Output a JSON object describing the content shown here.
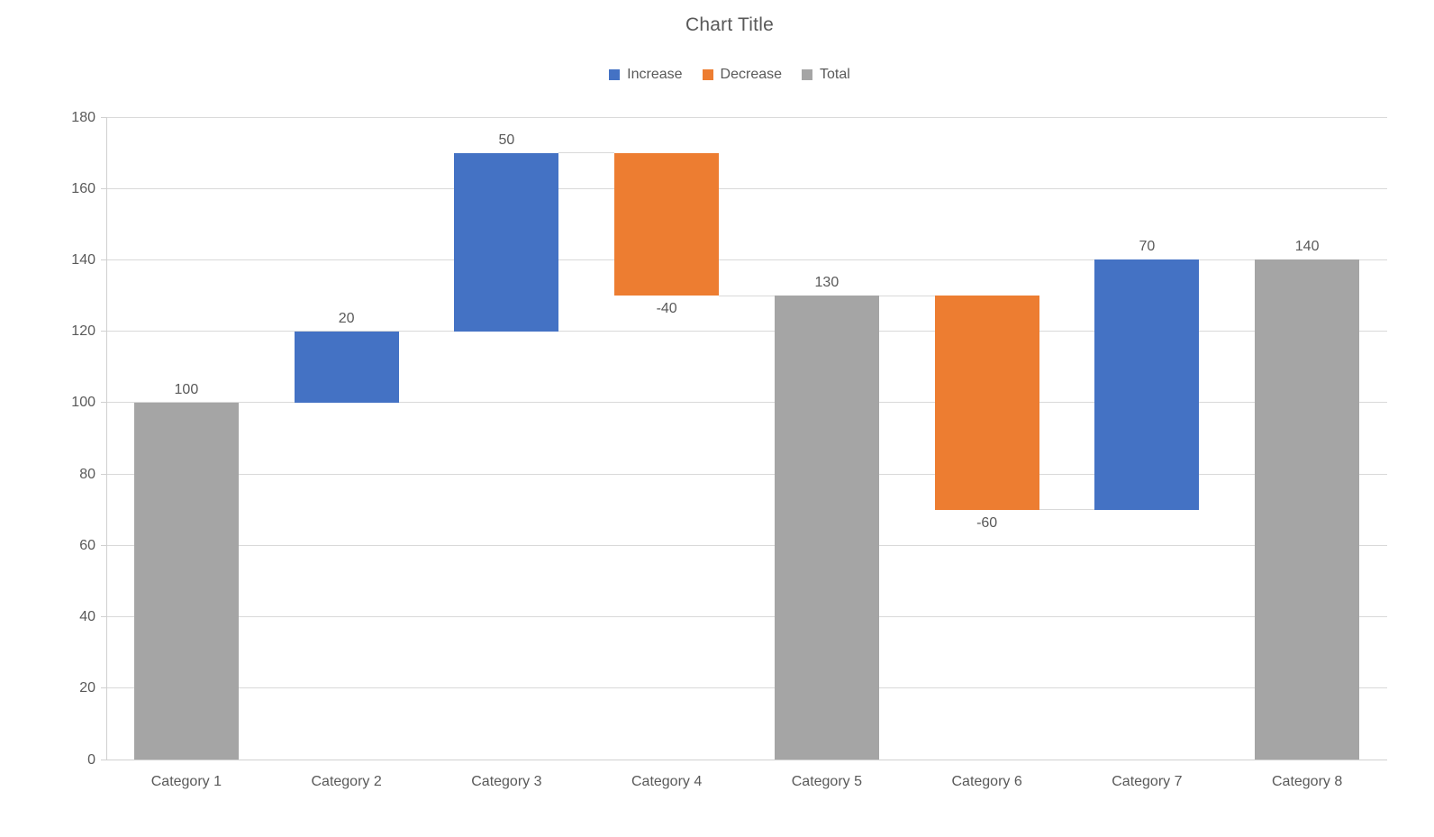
{
  "chart_data": {
    "type": "waterfall",
    "title": "Chart Title",
    "categories": [
      "Category 1",
      "Category 2",
      "Category 3",
      "Category 4",
      "Category 5",
      "Category 6",
      "Category 7",
      "Category 8"
    ],
    "bars": [
      {
        "category": "Category 1",
        "type": "total",
        "value": 100,
        "start": 0,
        "end": 100,
        "label": "100",
        "label_position": "above"
      },
      {
        "category": "Category 2",
        "type": "increase",
        "value": 20,
        "start": 100,
        "end": 120,
        "label": "20",
        "label_position": "above"
      },
      {
        "category": "Category 3",
        "type": "increase",
        "value": 50,
        "start": 120,
        "end": 170,
        "label": "50",
        "label_position": "above"
      },
      {
        "category": "Category 4",
        "type": "decrease",
        "value": -40,
        "start": 170,
        "end": 130,
        "label": "-40",
        "label_position": "below"
      },
      {
        "category": "Category 5",
        "type": "total",
        "value": 130,
        "start": 0,
        "end": 130,
        "label": "130",
        "label_position": "above"
      },
      {
        "category": "Category 6",
        "type": "decrease",
        "value": -60,
        "start": 130,
        "end": 70,
        "label": "-60",
        "label_position": "below"
      },
      {
        "category": "Category 7",
        "type": "increase",
        "value": 70,
        "start": 70,
        "end": 140,
        "label": "70",
        "label_position": "above"
      },
      {
        "category": "Category 8",
        "type": "total",
        "value": 140,
        "start": 0,
        "end": 140,
        "label": "140",
        "label_position": "above"
      }
    ],
    "legend": [
      {
        "label": "Increase",
        "type": "increase",
        "color": "#4472C4"
      },
      {
        "label": "Decrease",
        "type": "decrease",
        "color": "#ED7D31"
      },
      {
        "label": "Total",
        "type": "total",
        "color": "#A5A5A5"
      }
    ],
    "legend_position": "top",
    "yticks": [
      0,
      20,
      40,
      60,
      80,
      100,
      120,
      140,
      160,
      180
    ],
    "ylim": [
      0,
      180
    ],
    "xlabel": "",
    "ylabel": "",
    "grid": true,
    "colors": {
      "increase": "#4472C4",
      "decrease": "#ED7D31",
      "total": "#A5A5A5",
      "text": "#595959",
      "gridline": "#D9D9D9",
      "axis_line": "#D0D0D0",
      "connector": "#D9D9D9",
      "background": "#FFFFFF"
    }
  }
}
